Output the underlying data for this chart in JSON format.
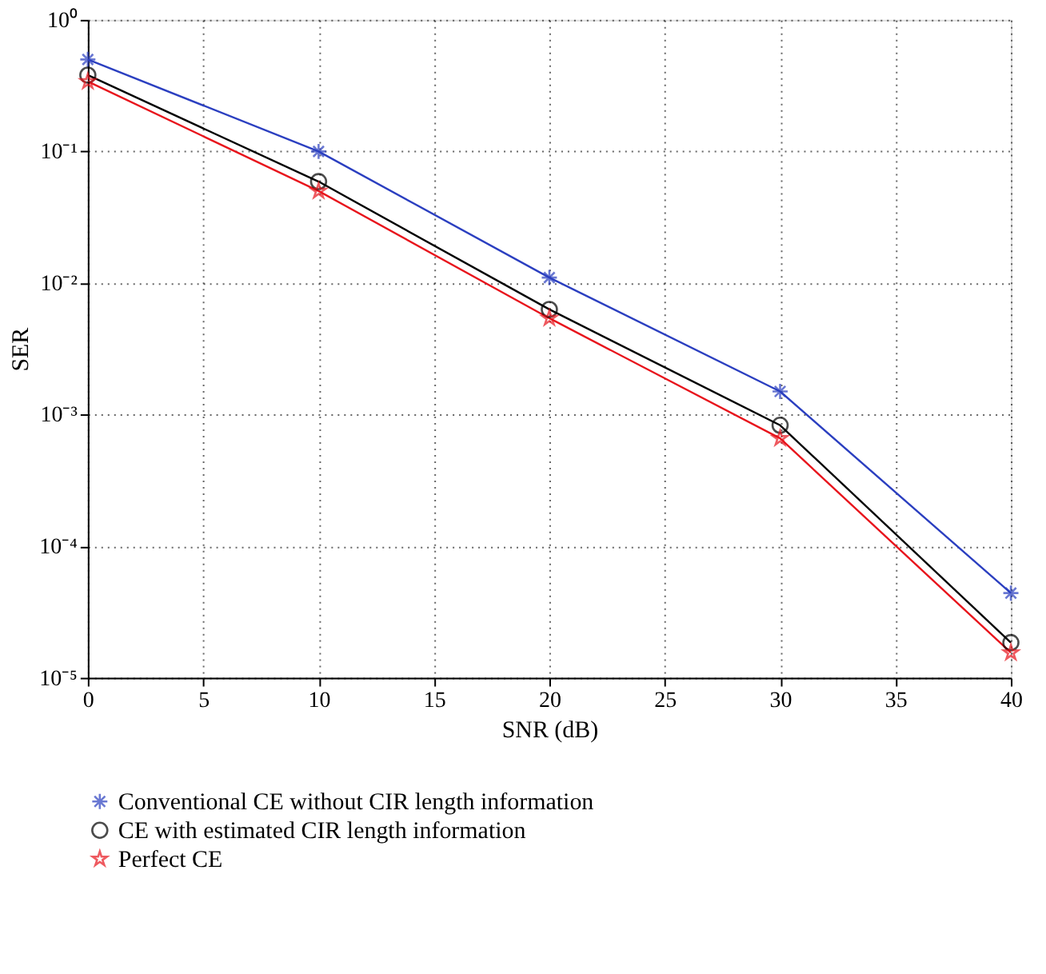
{
  "chart_data": {
    "type": "line",
    "xlabel": "SNR (dB)",
    "ylabel": "SER",
    "x": [
      0,
      10,
      20,
      30,
      40
    ],
    "series": [
      {
        "name": "Conventional CE without CIR length information",
        "color": "#2b3fc0",
        "marker": "cross",
        "values": [
          0.5,
          0.1,
          0.011,
          0.0015,
          4.4e-05
        ]
      },
      {
        "name": "CE with estimated CIR length information",
        "color": "#000000",
        "marker": "circle",
        "values": [
          0.38,
          0.059,
          0.0063,
          0.00083,
          1.85e-05
        ]
      },
      {
        "name": "Perfect CE",
        "color": "#e8141c",
        "marker": "star",
        "values": [
          0.34,
          0.05,
          0.0054,
          0.00066,
          1.55e-05
        ]
      }
    ],
    "log": "y",
    "xlim": [
      0,
      40
    ],
    "xticks": [
      0,
      5,
      10,
      15,
      20,
      25,
      30,
      35,
      40
    ],
    "ylim": [
      1e-05,
      1
    ],
    "yticks": [
      {
        "value": 1e-05,
        "label": "10⁻⁵"
      },
      {
        "value": 0.0001,
        "label": "10⁻⁴"
      },
      {
        "value": 0.001,
        "label": "10⁻³"
      },
      {
        "value": 0.01,
        "label": "10⁻²"
      },
      {
        "value": 0.1,
        "label": "10⁻¹"
      },
      {
        "value": 1,
        "label": "10⁰"
      }
    ],
    "grid": true,
    "legend": "bottom",
    "line_style": "solid"
  }
}
